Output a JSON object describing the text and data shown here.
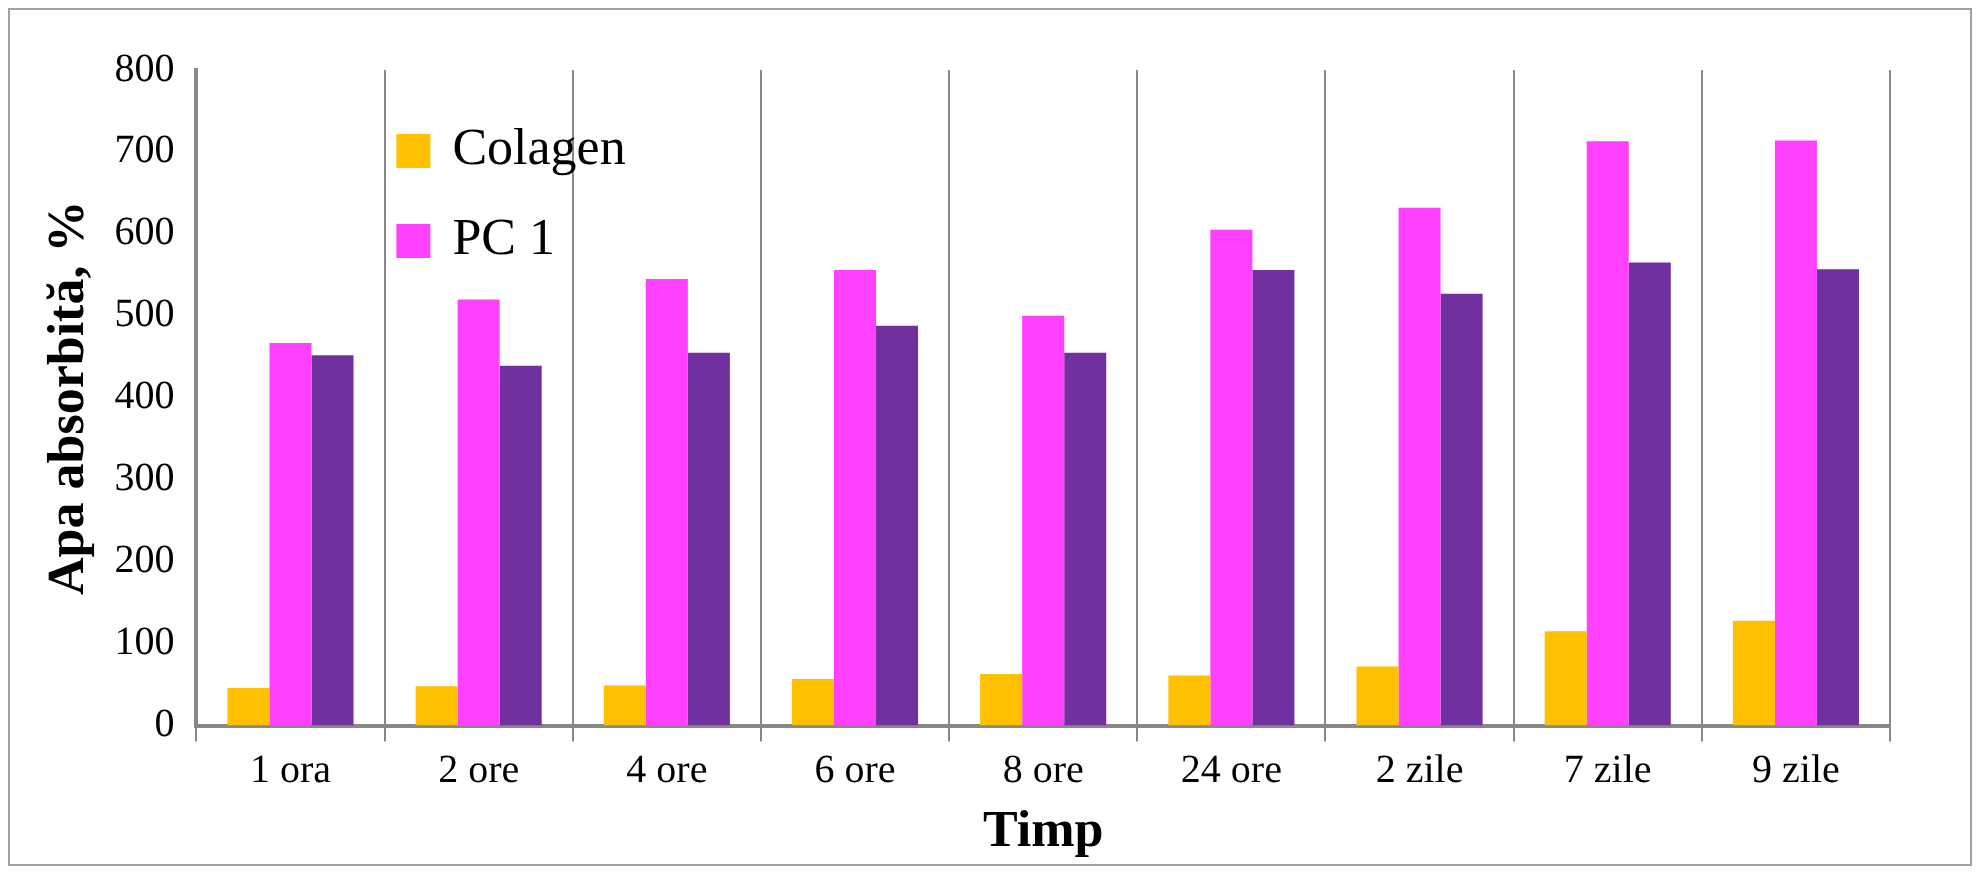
{
  "chart_data": {
    "type": "bar",
    "xlabel": "Timp",
    "ylabel": "Apa absorbită, %",
    "categories": [
      "1 ora",
      "2 ore",
      "4 ore",
      "6 ore",
      "8 ore",
      "24 ore",
      "2 zile",
      "7 zile",
      "9 zile"
    ],
    "series": [
      {
        "name": "Colagen",
        "color": "#ffc000",
        "values": [
          46,
          48,
          49,
          57,
          63,
          61,
          72,
          115,
          128
        ]
      },
      {
        "name": "PC 1",
        "color": "#ff40ff",
        "values": [
          467,
          520,
          545,
          556,
          500,
          605,
          632,
          713,
          714
        ]
      },
      {
        "color": "#7030a0",
        "values": [
          452,
          439,
          455,
          488,
          455,
          556,
          527,
          565,
          557
        ]
      }
    ],
    "ylim": [
      0,
      800
    ],
    "yticks": [
      0,
      100,
      200,
      300,
      400,
      500,
      600,
      700,
      800
    ],
    "grid": false,
    "legend": "top left"
  }
}
